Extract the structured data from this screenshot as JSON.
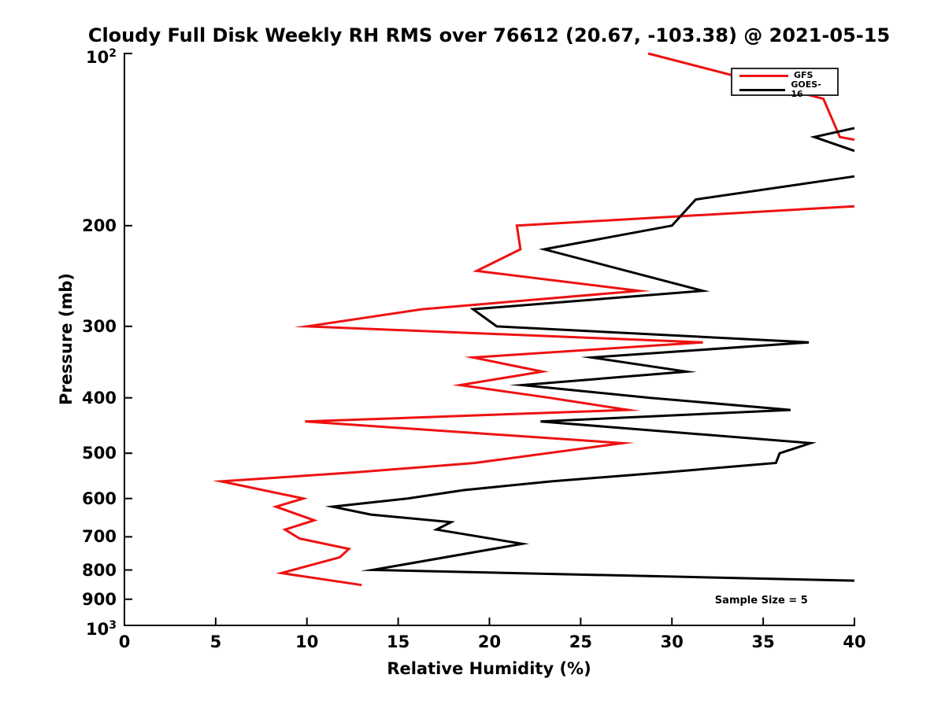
{
  "figure": {
    "background": "#ffffff",
    "title": "Cloudy Full Disk Weekly RH RMS over 76612 (20.67, -103.38) @ 2021-05-15"
  },
  "chart_data": {
    "type": "line",
    "title": "Cloudy Full Disk Weekly RH RMS over 76612 (20.67, -103.38) @ 2021-05-15",
    "xlabel": "Relative Humidity (%)",
    "ylabel": "Pressure (mb)",
    "grid": false,
    "x_axis": {
      "min": 0,
      "max": 40,
      "ticks": [
        0,
        5,
        10,
        15,
        20,
        25,
        30,
        35,
        40
      ]
    },
    "y_axis": {
      "scale": "log",
      "top_value": 100,
      "bottom_value": 1000,
      "orientation": "pressure increases downward",
      "ticks": [
        {
          "value": 100,
          "base": "10",
          "sup": "2"
        },
        {
          "value": 200,
          "label": "200"
        },
        {
          "value": 300,
          "label": "300"
        },
        {
          "value": 400,
          "label": "400"
        },
        {
          "value": 500,
          "label": "500"
        },
        {
          "value": 600,
          "label": "600"
        },
        {
          "value": 700,
          "label": "700"
        },
        {
          "value": 800,
          "label": "800"
        },
        {
          "value": 900,
          "label": "900"
        },
        {
          "value": 1000,
          "base": "10",
          "sup": "3"
        }
      ]
    },
    "legend": {
      "position": "top-right",
      "entries": [
        {
          "label": "GFS",
          "color": "#ee1111"
        },
        {
          "label": "GOES-16",
          "color": "#000000"
        }
      ]
    },
    "annotation": {
      "text": "Sample Size = 5",
      "x_rh": 34.9,
      "y_pressure": 910
    },
    "clip_note": "curves are clipped at the RH = 40 axis limit; points at rh=40 are visible boundary crossings",
    "series": [
      {
        "name": "GFS",
        "color": "#ee1111",
        "line_width": 3,
        "points_rh_pressure_segments": [
          [
            [
              28.7,
              100
            ],
            [
              38.3,
              120
            ],
            [
              39.2,
              140
            ],
            [
              40,
              141.5
            ]
          ],
          [
            [
              40,
              185
            ],
            [
              21.5,
              200
            ],
            [
              21.7,
              220
            ],
            [
              19.3,
              240
            ],
            [
              28.2,
              260
            ],
            [
              16.3,
              280
            ],
            [
              10.0,
              300
            ],
            [
              31.7,
              320
            ],
            [
              19.1,
              340
            ],
            [
              22.9,
              360
            ],
            [
              18.4,
              380
            ],
            [
              23.3,
              400
            ],
            [
              27.6,
              420
            ],
            [
              9.9,
              440
            ],
            [
              27.3,
              480
            ],
            [
              19.2,
              520
            ],
            [
              12.6,
              540
            ],
            [
              5.3,
              560
            ],
            [
              9.8,
              600
            ],
            [
              8.3,
              620
            ],
            [
              10.4,
              655
            ],
            [
              8.8,
              680
            ],
            [
              9.6,
              705
            ],
            [
              12.3,
              735
            ],
            [
              11.8,
              760
            ],
            [
              8.6,
              810
            ],
            [
              13.0,
              850
            ]
          ]
        ]
      },
      {
        "name": "GOES-16",
        "color": "#000000",
        "line_width": 3,
        "points_rh_pressure_segments": [
          [
            [
              40,
              135
            ],
            [
              37.8,
              140
            ],
            [
              40,
              148
            ]
          ],
          [
            [
              40,
              164
            ],
            [
              31.3,
              180
            ],
            [
              30.0,
              200
            ],
            [
              23.0,
              220
            ],
            [
              31.7,
              260
            ],
            [
              19.1,
              280
            ],
            [
              20.4,
              300
            ],
            [
              37.5,
              320
            ],
            [
              25.6,
              340
            ],
            [
              30.8,
              360
            ],
            [
              21.8,
              380
            ],
            [
              28.8,
              400
            ],
            [
              36.5,
              420
            ],
            [
              22.8,
              440
            ],
            [
              37.6,
              480
            ],
            [
              35.9,
              500
            ],
            [
              35.7,
              520
            ],
            [
              29.6,
              540
            ],
            [
              23.4,
              560
            ],
            [
              18.6,
              580
            ],
            [
              15.5,
              600
            ],
            [
              11.4,
              620
            ],
            [
              13.5,
              640
            ],
            [
              17.9,
              660
            ],
            [
              17.1,
              680
            ],
            [
              21.8,
              720
            ],
            [
              13.6,
              800
            ],
            [
              40,
              835
            ]
          ]
        ]
      }
    ]
  }
}
